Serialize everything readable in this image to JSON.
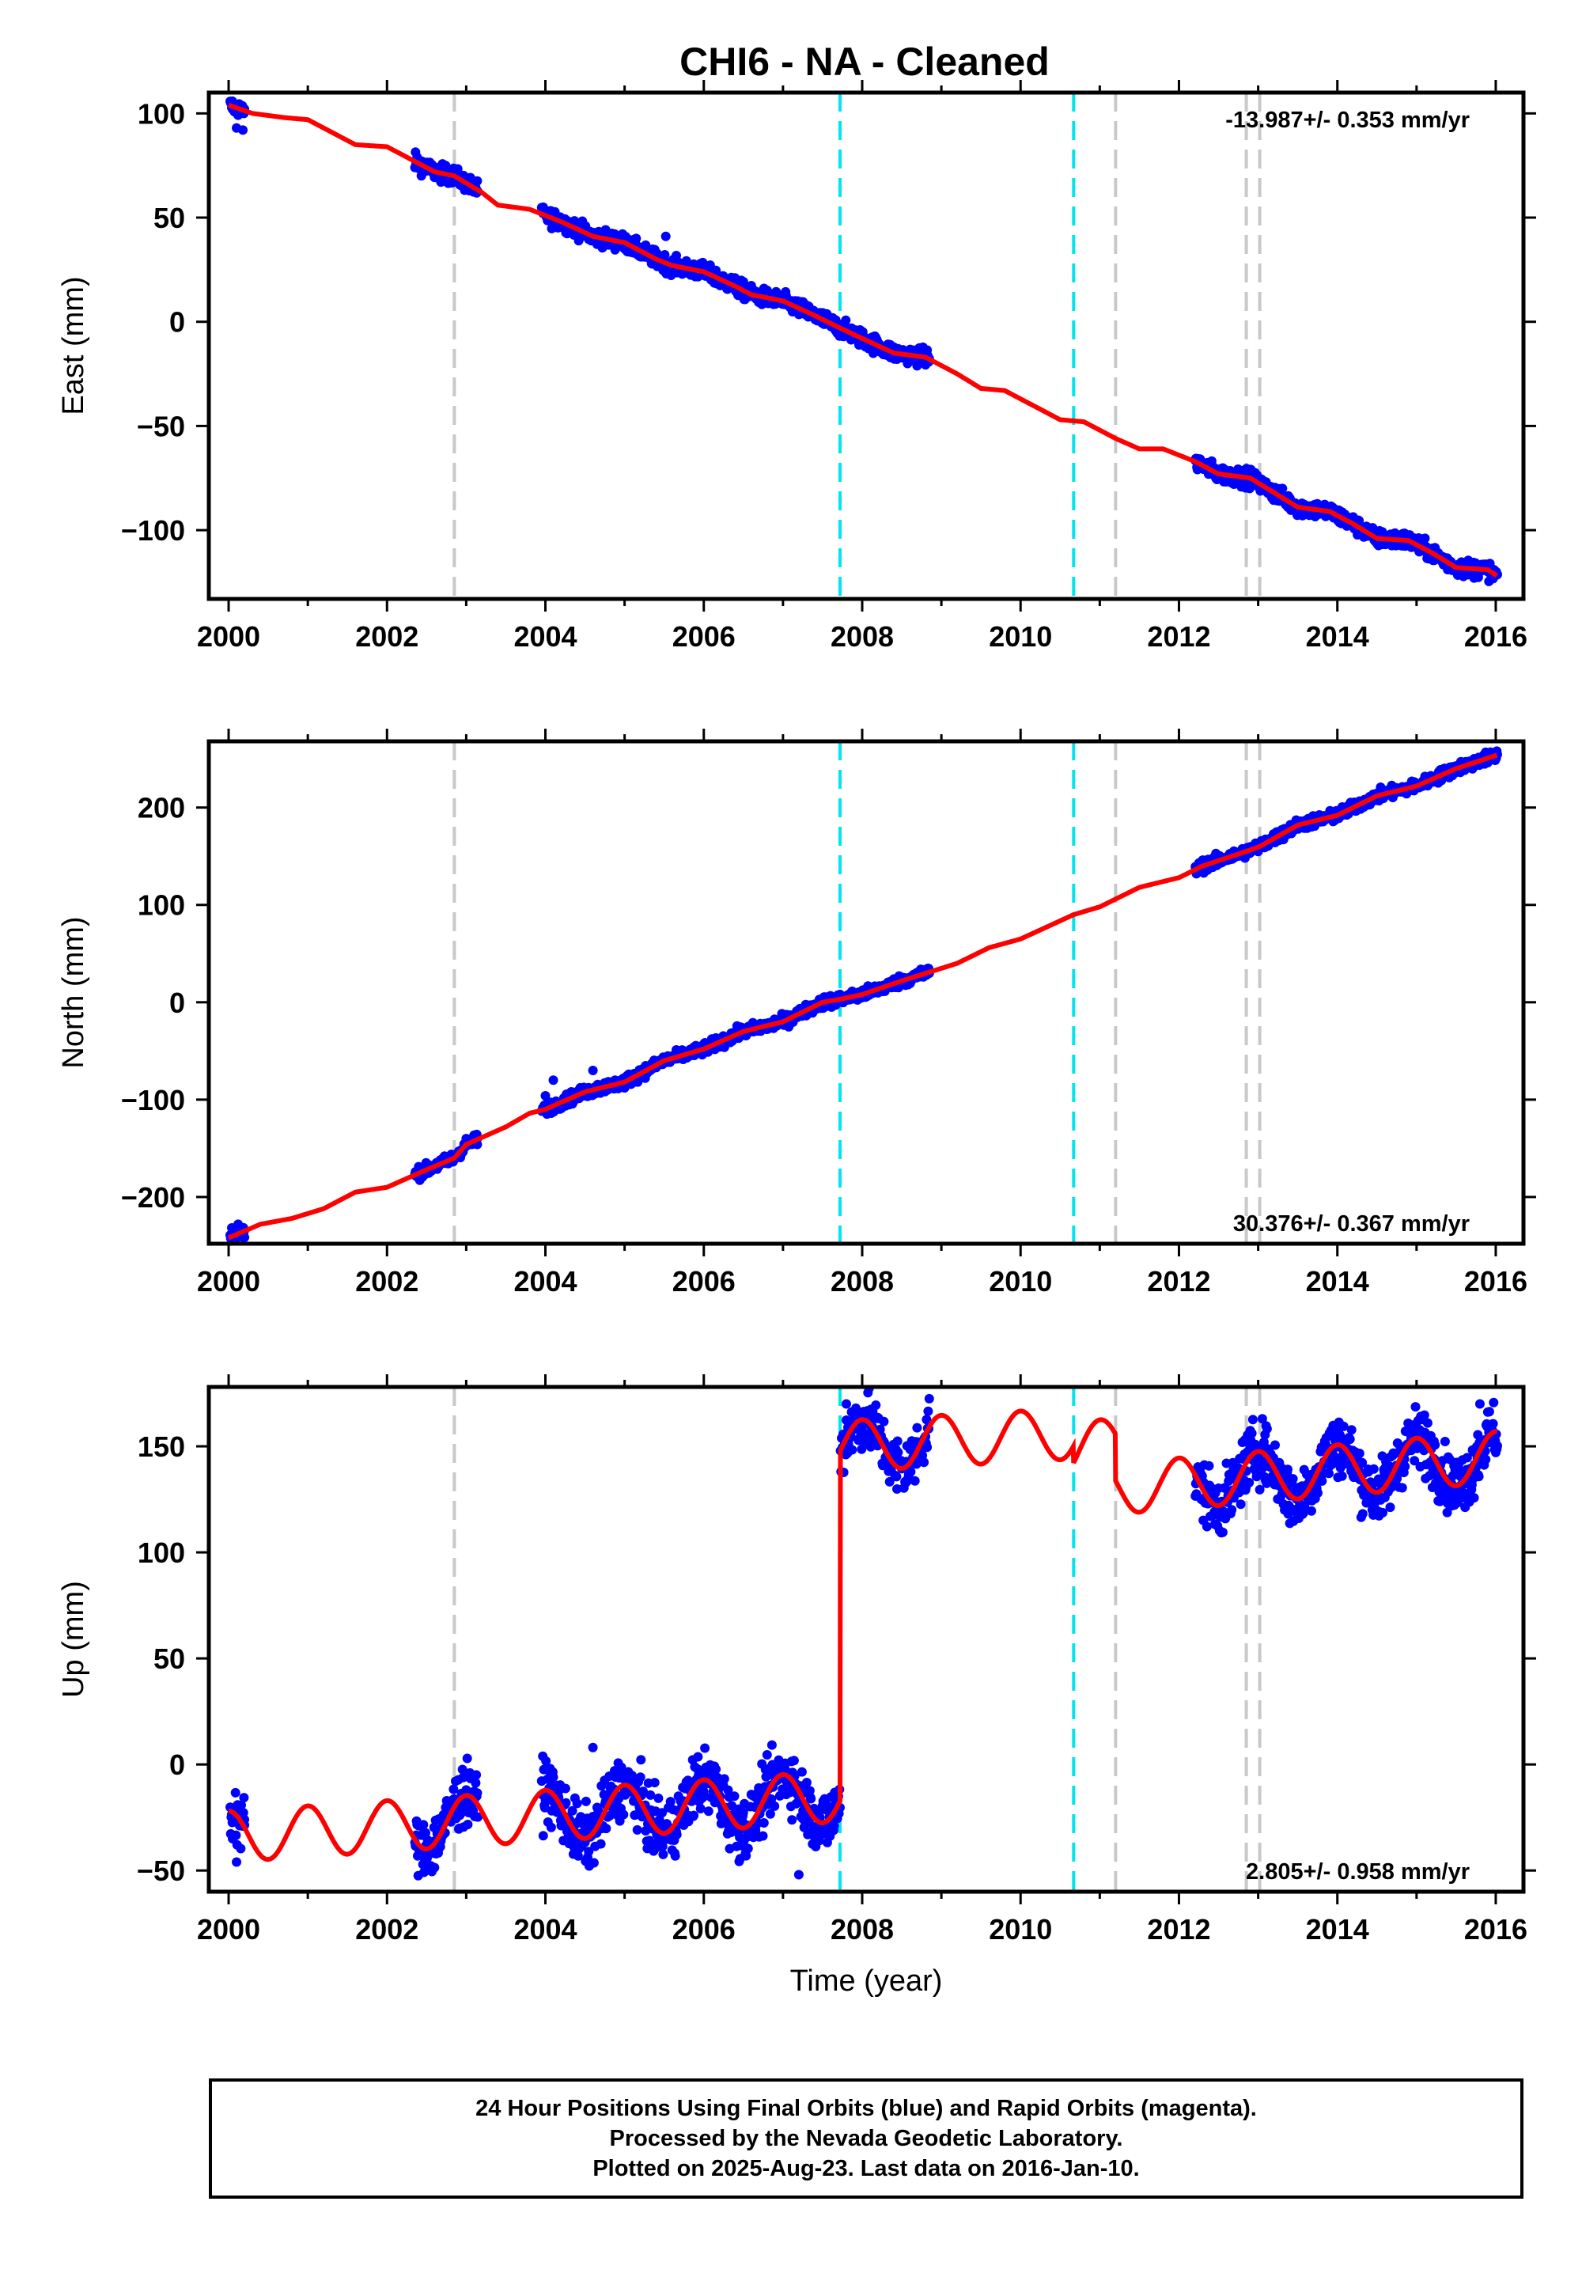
{
  "chart_data": {
    "title": "CHI6  - NA - Cleaned",
    "type": "scatter",
    "xlabel": "Time (year)",
    "xlim": [
      1999.75,
      2016.35
    ],
    "xticks": [
      2000,
      2002,
      2004,
      2006,
      2008,
      2010,
      2012,
      2014,
      2016
    ],
    "vlines": {
      "gray": [
        2002.85,
        2011.2,
        2012.85,
        2013.02
      ],
      "cyan": [
        2007.72,
        2010.67
      ]
    },
    "data_gaps": [
      [
        2000.2,
        2002.35
      ],
      [
        2003.15,
        2003.95
      ],
      [
        2008.85,
        2012.2
      ]
    ],
    "panels": [
      {
        "component": "east",
        "ylabel": "East (mm)",
        "ylim": [
          -133,
          110
        ],
        "yticks": [
          100,
          50,
          0,
          -50,
          -100
        ],
        "rate": -13.987,
        "rate_label": "-13.987+/- 0.353 mm/yr",
        "rate_position": "top-right",
        "model": {
          "knots": [
            [
              2000.0,
              104
            ],
            [
              2000.3,
              100
            ],
            [
              2000.7,
              98
            ],
            [
              2001.0,
              97
            ],
            [
              2001.4,
              89
            ],
            [
              2001.6,
              85
            ],
            [
              2002.0,
              84
            ],
            [
              2002.4,
              76
            ],
            [
              2002.6,
              72
            ],
            [
              2002.85,
              70
            ],
            [
              2003.2,
              62
            ],
            [
              2003.4,
              56
            ],
            [
              2003.8,
              54
            ],
            [
              2004.2,
              48
            ],
            [
              2004.6,
              41
            ],
            [
              2005.0,
              38
            ],
            [
              2005.4,
              30
            ],
            [
              2005.6,
              27
            ],
            [
              2006.0,
              24
            ],
            [
              2006.4,
              17
            ],
            [
              2006.6,
              13
            ],
            [
              2007.0,
              10
            ],
            [
              2007.4,
              3
            ],
            [
              2007.72,
              -3
            ],
            [
              2008.0,
              -8
            ],
            [
              2008.4,
              -15
            ],
            [
              2008.8,
              -17
            ],
            [
              2009.2,
              -25
            ],
            [
              2009.5,
              -32
            ],
            [
              2009.8,
              -33
            ],
            [
              2010.2,
              -41
            ],
            [
              2010.5,
              -47
            ],
            [
              2010.8,
              -48
            ],
            [
              2011.2,
              -56
            ],
            [
              2011.5,
              -61
            ],
            [
              2011.8,
              -61
            ],
            [
              2012.2,
              -67
            ],
            [
              2012.5,
              -73
            ],
            [
              2012.9,
              -75
            ],
            [
              2013.2,
              -82
            ],
            [
              2013.5,
              -89
            ],
            [
              2013.9,
              -91
            ],
            [
              2014.2,
              -97
            ],
            [
              2014.5,
              -104
            ],
            [
              2014.9,
              -105
            ],
            [
              2015.2,
              -111
            ],
            [
              2015.5,
              -118
            ],
            [
              2015.9,
              -119
            ],
            [
              2016.02,
              -122
            ]
          ],
          "wobble": 0
        },
        "noise": 2.0,
        "outliers": [
          [
            2000.05,
            102
          ],
          [
            2000.12,
            100
          ],
          [
            2000.1,
            93
          ],
          [
            2000.18,
            92
          ],
          [
            2005.52,
            41
          ]
        ]
      },
      {
        "component": "north",
        "ylabel": "North (mm)",
        "ylim": [
          -248,
          268
        ],
        "yticks": [
          200,
          100,
          0,
          -100,
          -200
        ],
        "rate": 30.376,
        "rate_label": "30.376+/- 0.367 mm/yr",
        "rate_position": "bottom-right",
        "model": {
          "knots": [
            [
              2000.0,
              -242
            ],
            [
              2000.4,
              -228
            ],
            [
              2000.8,
              -222
            ],
            [
              2001.2,
              -212
            ],
            [
              2001.6,
              -195
            ],
            [
              2002.0,
              -190
            ],
            [
              2002.5,
              -172
            ],
            [
              2002.85,
              -160
            ],
            [
              2003.0,
              -146
            ],
            [
              2003.5,
              -128
            ],
            [
              2003.8,
              -114
            ],
            [
              2004.0,
              -110
            ],
            [
              2004.5,
              -92
            ],
            [
              2005.0,
              -82
            ],
            [
              2005.5,
              -60
            ],
            [
              2006.0,
              -48
            ],
            [
              2006.5,
              -30
            ],
            [
              2007.0,
              -20
            ],
            [
              2007.5,
              0
            ],
            [
              2007.72,
              3
            ],
            [
              2008.0,
              8
            ],
            [
              2008.5,
              22
            ],
            [
              2008.85,
              31
            ],
            [
              2009.2,
              40
            ],
            [
              2009.6,
              56
            ],
            [
              2010.0,
              65
            ],
            [
              2010.67,
              90
            ],
            [
              2011.0,
              98
            ],
            [
              2011.5,
              118
            ],
            [
              2012.0,
              128
            ],
            [
              2012.3,
              140
            ],
            [
              2012.85,
              155
            ],
            [
              2013.02,
              160
            ],
            [
              2013.5,
              182
            ],
            [
              2014.0,
              192
            ],
            [
              2014.5,
              212
            ],
            [
              2015.0,
              222
            ],
            [
              2015.5,
              240
            ],
            [
              2016.02,
              254
            ]
          ],
          "wobble": 0
        },
        "noise": 3.0,
        "outliers": [
          [
            2000.05,
            -232
          ],
          [
            2000.12,
            -228
          ],
          [
            2003.0,
            -140
          ],
          [
            2004.0,
            -96
          ],
          [
            2004.6,
            -70
          ],
          [
            2004.1,
            -80
          ]
        ]
      },
      {
        "component": "up",
        "ylabel": "Up (mm)",
        "ylim": [
          -60,
          178
        ],
        "yticks": [
          150,
          100,
          50,
          0,
          -50
        ],
        "rate": 2.805,
        "rate_label": "2.805+/- 0.958 mm/yr",
        "rate_position": "bottom-right",
        "model": {
          "knots": [
            [
              2000.0,
              -34
            ],
            [
              2007.72,
              -15
            ],
            [
              2007.7201,
              150
            ],
            [
              2010.669,
              156
            ],
            [
              2010.67,
              148
            ],
            [
              2011.199,
              152
            ],
            [
              2011.2,
              130
            ],
            [
              2016.02,
              145
            ]
          ],
          "wobble": 12,
          "wobble_phase": 2001.0
        },
        "noise": 7.0,
        "outliers": [
          [
            2000.05,
            -35
          ],
          [
            2000.1,
            -46
          ],
          [
            2000.2,
            -26
          ],
          [
            2002.8,
            -18
          ],
          [
            2003.0,
            -12
          ],
          [
            2004.6,
            8
          ],
          [
            2007.2,
            -52
          ],
          [
            2007.8,
            170
          ],
          [
            2015.8,
            170
          ]
        ]
      }
    ],
    "series": [
      {
        "name": "24 Hour Positions Using Final Orbits (blue)",
        "color": "#0000ff"
      },
      {
        "name": "Model fit",
        "color": "#ff0000"
      }
    ]
  },
  "footer": {
    "line1": "24 Hour Positions Using Final Orbits (blue) and Rapid Orbits (magenta).",
    "line2": "Processed by the Nevada Geodetic Laboratory.",
    "line3": "Plotted on 2025-Aug-23. Last data on 2016-Jan-10."
  }
}
